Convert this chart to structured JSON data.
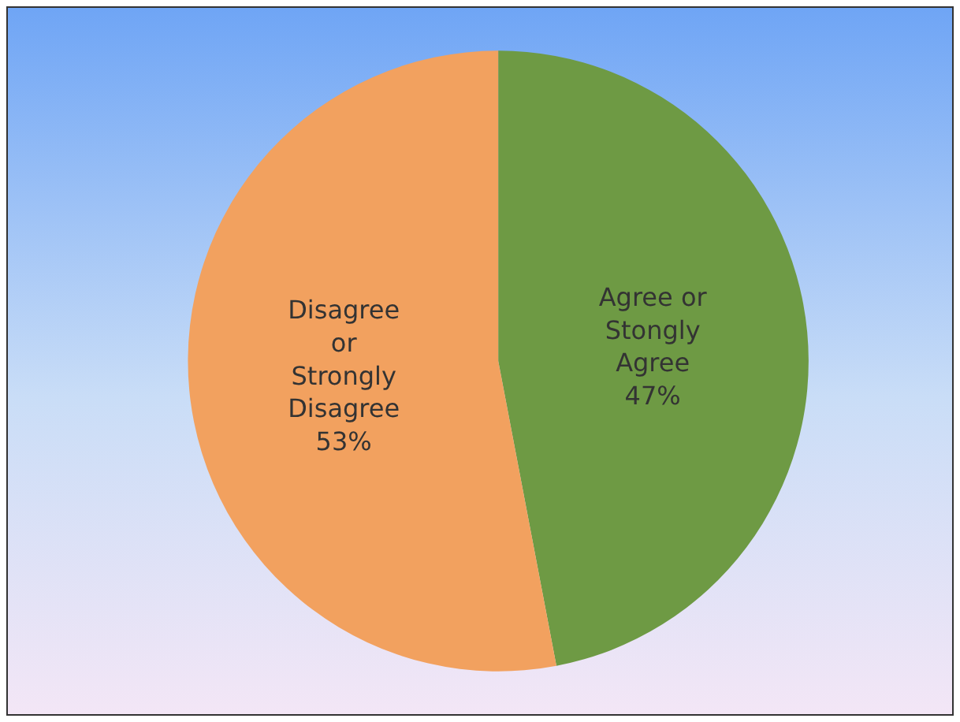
{
  "chart_data": {
    "type": "pie",
    "categories": [
      "Agree or Stongly Agree",
      "Disagree or Strongly Disagree"
    ],
    "values": [
      47,
      53
    ],
    "value_labels": [
      "47%",
      "53%"
    ],
    "colors": [
      "#6e9a44",
      "#f2a15f"
    ],
    "legend": false
  }
}
